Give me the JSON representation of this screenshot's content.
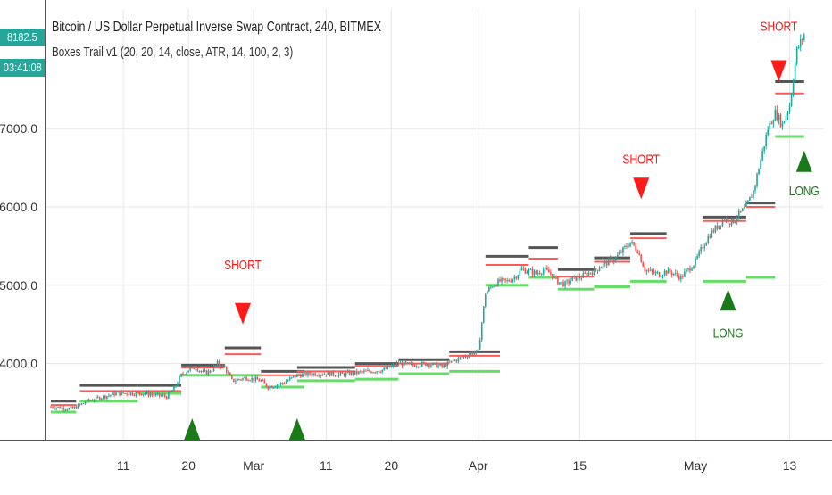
{
  "header": {
    "title": "Bitcoin / US Dollar Perpetual Inverse Swap Contract, 240, BITMEX",
    "indicator": "Boxes Trail v1 (20, 20, 14, close, ATR, 14, 100, 2, 3)"
  },
  "price_tags": {
    "last_price": "8182.5",
    "countdown": "03:41:08"
  },
  "colors": {
    "up": "#26a69a",
    "down": "#ef5350",
    "short": "#ff1a1a",
    "long": "#1a7a1a",
    "box_top": "#555555",
    "box_mid": "#ff5a5a",
    "box_support": "#66dd66",
    "grid": "#e6e6e6"
  },
  "chart_data": {
    "type": "candlestick",
    "title": "Bitcoin / US Dollar Perpetual Inverse Swap Contract, 240, BITMEX",
    "indicator": "Boxes Trail v1 (20, 20, 14, close, ATR, 14, 100, 2, 3)",
    "y_ticks": [
      "7000.0",
      "6000.0",
      "5000.0",
      "4000.0"
    ],
    "y_tick_values": [
      7000,
      6000,
      5000,
      4000
    ],
    "ylim": [
      3000,
      8500
    ],
    "x_tick_labels": [
      "11",
      "20",
      "Mar",
      "11",
      "20",
      "Apr",
      "15",
      "May",
      "13"
    ],
    "x_tick_days": [
      10,
      19,
      28,
      38,
      47,
      59,
      73,
      89,
      102
    ],
    "xlim": [
      0,
      106
    ],
    "grid": true,
    "price_path": [
      [
        0,
        3450
      ],
      [
        3,
        3420
      ],
      [
        5,
        3520
      ],
      [
        9,
        3620
      ],
      [
        13,
        3620
      ],
      [
        14,
        3600
      ],
      [
        16,
        3580
      ],
      [
        17,
        3680
      ],
      [
        18,
        3850
      ],
      [
        19,
        3920
      ],
      [
        20,
        3950
      ],
      [
        21,
        3880
      ],
      [
        22,
        3900
      ],
      [
        23,
        4000
      ],
      [
        24,
        3950
      ],
      [
        25,
        3780
      ],
      [
        26,
        3800
      ],
      [
        27,
        3820
      ],
      [
        28,
        3800
      ],
      [
        29,
        3780
      ],
      [
        30,
        3700
      ],
      [
        32,
        3750
      ],
      [
        34,
        3850
      ],
      [
        36,
        3870
      ],
      [
        38,
        3870
      ],
      [
        40,
        3860
      ],
      [
        42,
        3880
      ],
      [
        44,
        3900
      ],
      [
        46,
        3920
      ],
      [
        48,
        4000
      ],
      [
        50,
        3980
      ],
      [
        52,
        4000
      ],
      [
        54,
        3960
      ],
      [
        56,
        4050
      ],
      [
        58,
        4130
      ],
      [
        59,
        4150
      ],
      [
        60,
        4900
      ],
      [
        61,
        5000
      ],
      [
        62,
        5050
      ],
      [
        63,
        5050
      ],
      [
        64,
        5100
      ],
      [
        65,
        5200
      ],
      [
        66,
        5180
      ],
      [
        67,
        5150
      ],
      [
        68,
        5200
      ],
      [
        69,
        5150
      ],
      [
        70,
        5050
      ],
      [
        71,
        5010
      ],
      [
        72,
        5080
      ],
      [
        73,
        5100
      ],
      [
        74,
        5150
      ],
      [
        75,
        5180
      ],
      [
        76,
        5250
      ],
      [
        77,
        5300
      ],
      [
        78,
        5350
      ],
      [
        79,
        5450
      ],
      [
        80,
        5550
      ],
      [
        81,
        5450
      ],
      [
        82,
        5200
      ],
      [
        83,
        5160
      ],
      [
        84,
        5140
      ],
      [
        85,
        5180
      ],
      [
        86,
        5150
      ],
      [
        87,
        5100
      ],
      [
        88,
        5200
      ],
      [
        89,
        5300
      ],
      [
        90,
        5500
      ],
      [
        91,
        5650
      ],
      [
        92,
        5750
      ],
      [
        93,
        5850
      ],
      [
        94,
        5800
      ],
      [
        95,
        5900
      ],
      [
        96,
        6000
      ],
      [
        97,
        6200
      ],
      [
        98,
        6600
      ],
      [
        99,
        7000
      ],
      [
        100,
        7200
      ],
      [
        101,
        7050
      ],
      [
        102,
        7300
      ],
      [
        103,
        8000
      ],
      [
        104,
        8200
      ]
    ],
    "boxes": [
      {
        "x0": 0,
        "x1": 3.5,
        "top": 3520,
        "mid": 3470,
        "support": 3380
      },
      {
        "x0": 4,
        "x1": 12,
        "top": 3720,
        "mid": 3650,
        "support": 3520
      },
      {
        "x0": 12,
        "x1": 18,
        "top": 3720,
        "mid": 3650,
        "support": 3620
      },
      {
        "x0": 18,
        "x1": 24,
        "top": 3980,
        "mid": 3950,
        "support": 3850
      },
      {
        "x0": 24,
        "x1": 29,
        "top": 4200,
        "mid": 4120,
        "support": 3850
      },
      {
        "x0": 29,
        "x1": 35,
        "top": 3900,
        "mid": 3850,
        "support": 3700
      },
      {
        "x0": 34,
        "x1": 42,
        "top": 3950,
        "mid": 3900,
        "support": 3780
      },
      {
        "x0": 42,
        "x1": 48,
        "top": 4000,
        "mid": 3970,
        "support": 3800
      },
      {
        "x0": 48,
        "x1": 55,
        "top": 4050,
        "mid": 4000,
        "support": 3870
      },
      {
        "x0": 55,
        "x1": 62,
        "top": 4150,
        "mid": 4100,
        "support": 3900
      },
      {
        "x0": 60,
        "x1": 66,
        "top": 5370,
        "mid": 5260,
        "support": 5000
      },
      {
        "x0": 66,
        "x1": 70,
        "top": 5480,
        "mid": 5340,
        "support": 5100
      },
      {
        "x0": 70,
        "x1": 75,
        "top": 5200,
        "mid": 5110,
        "support": 4950
      },
      {
        "x0": 75,
        "x1": 80,
        "top": 5350,
        "mid": 5300,
        "support": 4980
      },
      {
        "x0": 80,
        "x1": 85,
        "top": 5660,
        "mid": 5600,
        "support": 5050
      },
      {
        "x0": 90,
        "x1": 96,
        "top": 5870,
        "mid": 5820,
        "support": 5050
      },
      {
        "x0": 96,
        "x1": 100,
        "top": 6050,
        "mid": 6000,
        "support": 5100
      },
      {
        "x0": 100,
        "x1": 104,
        "top": 7600,
        "mid": 7450,
        "support": 6900
      }
    ],
    "signals": [
      {
        "type": "SHORT",
        "x": 26.5,
        "arrow_price": 4500,
        "label_price": 5200
      },
      {
        "type": "SHORT",
        "x": 81.5,
        "arrow_price": 6100,
        "label_price": 6550
      },
      {
        "type": "SHORT",
        "x": 100.5,
        "arrow_price": 7600,
        "label_price": 8250
      },
      {
        "type": "LONG",
        "x": 19.5,
        "arrow_price": 3150,
        "label_price": null
      },
      {
        "type": "LONG",
        "x": 34,
        "arrow_price": 3300,
        "label_price": null
      },
      {
        "type": "LONG",
        "x": 93.5,
        "arrow_price": 4950,
        "label_price": 4330
      },
      {
        "type": "LONG",
        "x": 104,
        "arrow_price": 6720,
        "label_price": 6150
      }
    ],
    "signal_text": {
      "short": "SHORT",
      "long": "LONG"
    }
  }
}
